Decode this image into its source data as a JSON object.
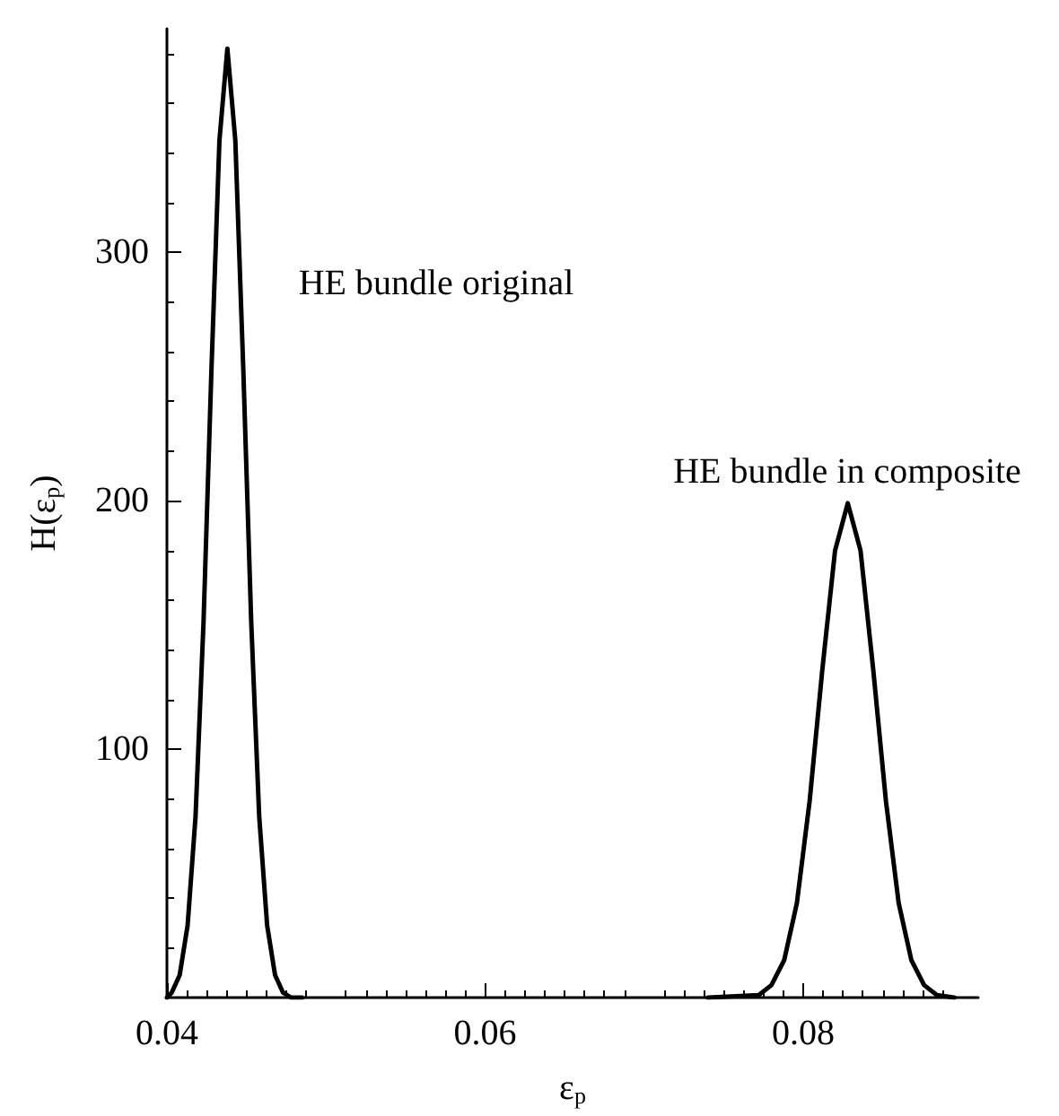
{
  "chart_data": {
    "type": "line",
    "xlabel": "ε$_{p}$",
    "ylabel": "H(ε$_{p}$)",
    "xlim": [
      0.04,
      0.091
    ],
    "ylim": [
      0,
      390
    ],
    "xticks": [
      0.04,
      0.06,
      0.08
    ],
    "yticks": [
      100,
      200,
      300
    ],
    "grid": false,
    "marker": "none",
    "line_style": "solid",
    "series": [
      {
        "color": "#000000",
        "x": [
          0.04,
          0.0403,
          0.0408,
          0.0413,
          0.0418,
          0.0423,
          0.0428,
          0.0433,
          0.0438,
          0.0443,
          0.0448,
          0.0453,
          0.0458,
          0.0463,
          0.0468,
          0.0473,
          0.0478,
          0.0485
        ],
        "values": [
          0,
          2,
          9,
          29,
          73,
          151,
          253,
          345,
          382,
          345,
          253,
          151,
          73,
          29,
          9,
          2,
          0,
          0
        ]
      },
      {
        "color": "#000000",
        "x": [
          0.074,
          0.0772,
          0.078,
          0.0788,
          0.0796,
          0.0804,
          0.0812,
          0.082,
          0.0828,
          0.0836,
          0.0844,
          0.0852,
          0.086,
          0.0868,
          0.0876,
          0.0884,
          0.0895
        ],
        "values": [
          0,
          1,
          5,
          15,
          38,
          79,
          132,
          180,
          199,
          180,
          132,
          79,
          38,
          15,
          5,
          1,
          0
        ]
      }
    ],
    "annotations": [
      "HE bundle original",
      "HE bundle in composite"
    ]
  }
}
